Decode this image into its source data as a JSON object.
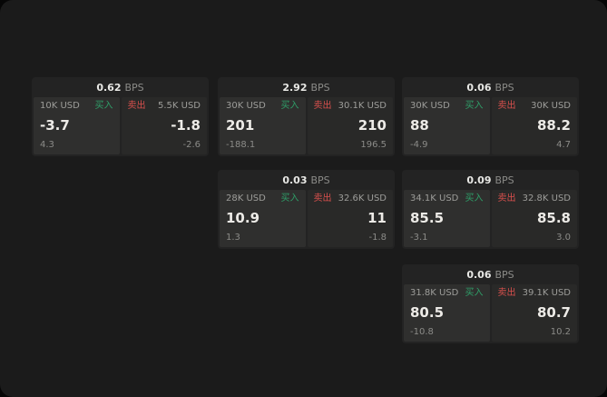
{
  "labels": {
    "buy": "买入",
    "sell": "卖出",
    "bps_unit": "BPS"
  },
  "colors": {
    "buy_green": "#2f9e68",
    "sell_red": "#d9504d",
    "background": "#1b1b1b"
  },
  "cards": [
    {
      "bps": "0.62",
      "buy": {
        "size": "10K USD",
        "price": "-3.7",
        "delta": "4.3"
      },
      "sell": {
        "size": "5.5K USD",
        "price": "-1.8",
        "delta": "-2.6"
      }
    },
    {
      "bps": "2.92",
      "buy": {
        "size": "30K USD",
        "price": "201",
        "delta": "-188.1"
      },
      "sell": {
        "size": "30.1K USD",
        "price": "210",
        "delta": "196.5"
      }
    },
    {
      "bps": "0.06",
      "buy": {
        "size": "30K USD",
        "price": "88",
        "delta": "-4.9"
      },
      "sell": {
        "size": "30K USD",
        "price": "88.2",
        "delta": "4.7"
      }
    },
    {
      "bps": "0.03",
      "buy": {
        "size": "28K USD",
        "price": "10.9",
        "delta": "1.3"
      },
      "sell": {
        "size": "32.6K USD",
        "price": "11",
        "delta": "-1.8"
      }
    },
    {
      "bps": "0.09",
      "buy": {
        "size": "34.1K USD",
        "price": "85.5",
        "delta": "-3.1"
      },
      "sell": {
        "size": "32.8K USD",
        "price": "85.8",
        "delta": "3.0"
      }
    },
    {
      "bps": "0.06",
      "buy": {
        "size": "31.8K USD",
        "price": "80.5",
        "delta": "-10.8"
      },
      "sell": {
        "size": "39.1K USD",
        "price": "80.7",
        "delta": "10.2"
      }
    }
  ]
}
